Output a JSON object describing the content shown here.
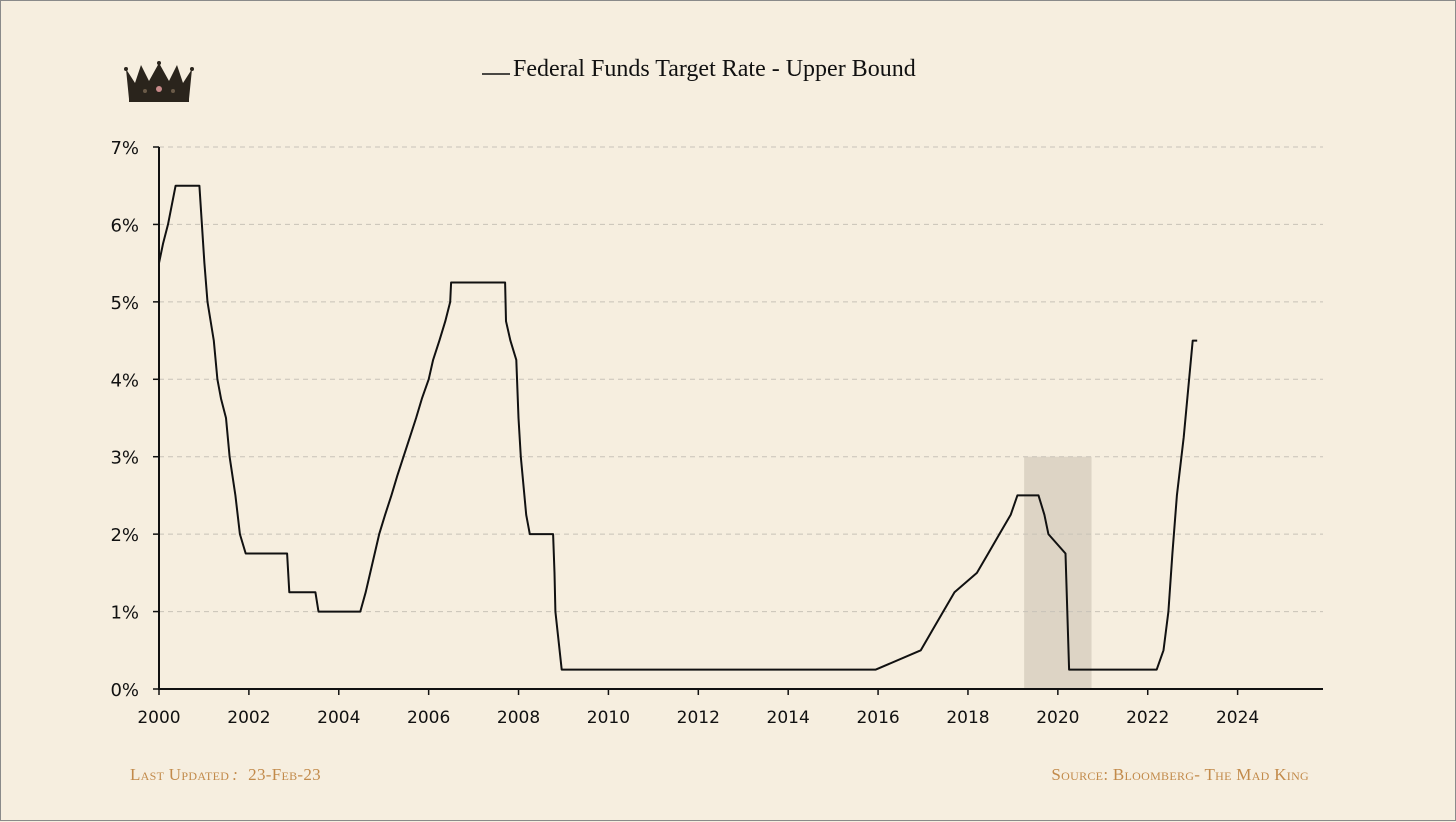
{
  "chart_data": {
    "type": "line",
    "title": "Federal Funds Target Rate - Upper Bound",
    "xlabel": "",
    "ylabel": "",
    "xlim": [
      2000,
      2025.9
    ],
    "ylim": [
      0,
      7
    ],
    "x_ticks": [
      2000,
      2002,
      2004,
      2006,
      2008,
      2010,
      2012,
      2014,
      2016,
      2018,
      2020,
      2022,
      2024
    ],
    "y_ticks": [
      0,
      1,
      2,
      3,
      4,
      5,
      6,
      7
    ],
    "y_tick_format": "percent",
    "grid": "horizontal-dashed",
    "legend": "top-center",
    "shaded_region": {
      "x": [
        2019.25,
        2020.75
      ],
      "y": [
        0,
        3
      ],
      "color": "#ddd4c5"
    },
    "series": [
      {
        "name": "Federal Funds Target Rate - Upper Bound",
        "color": "#111111",
        "points": [
          [
            2000.0,
            5.5
          ],
          [
            2000.09,
            5.75
          ],
          [
            2000.2,
            6.0
          ],
          [
            2000.37,
            6.5
          ],
          [
            2000.9,
            6.5
          ],
          [
            2001.01,
            5.5
          ],
          [
            2001.08,
            5.0
          ],
          [
            2001.22,
            4.5
          ],
          [
            2001.3,
            4.0
          ],
          [
            2001.38,
            3.75
          ],
          [
            2001.49,
            3.5
          ],
          [
            2001.57,
            3.0
          ],
          [
            2001.7,
            2.5
          ],
          [
            2001.8,
            2.0
          ],
          [
            2001.93,
            1.75
          ],
          [
            2002.85,
            1.75
          ],
          [
            2002.9,
            1.25
          ],
          [
            2003.48,
            1.25
          ],
          [
            2003.55,
            1.0
          ],
          [
            2004.48,
            1.0
          ],
          [
            2004.6,
            1.25
          ],
          [
            2004.7,
            1.5
          ],
          [
            2004.8,
            1.75
          ],
          [
            2004.9,
            2.0
          ],
          [
            2005.03,
            2.25
          ],
          [
            2005.17,
            2.5
          ],
          [
            2005.3,
            2.75
          ],
          [
            2005.44,
            3.0
          ],
          [
            2005.58,
            3.25
          ],
          [
            2005.72,
            3.5
          ],
          [
            2005.85,
            3.75
          ],
          [
            2006.0,
            4.0
          ],
          [
            2006.1,
            4.25
          ],
          [
            2006.24,
            4.5
          ],
          [
            2006.37,
            4.75
          ],
          [
            2006.48,
            5.0
          ],
          [
            2006.5,
            5.25
          ],
          [
            2007.7,
            5.25
          ],
          [
            2007.72,
            4.75
          ],
          [
            2007.82,
            4.5
          ],
          [
            2007.95,
            4.25
          ],
          [
            2008.0,
            3.5
          ],
          [
            2008.05,
            3.0
          ],
          [
            2008.17,
            2.25
          ],
          [
            2008.25,
            2.0
          ],
          [
            2008.77,
            2.0
          ],
          [
            2008.8,
            1.5
          ],
          [
            2008.82,
            1.0
          ],
          [
            2008.96,
            0.25
          ],
          [
            2015.95,
            0.25
          ],
          [
            2016.95,
            0.5
          ],
          [
            2017.2,
            0.75
          ],
          [
            2017.45,
            1.0
          ],
          [
            2017.7,
            1.25
          ],
          [
            2018.2,
            1.5
          ],
          [
            2018.45,
            1.75
          ],
          [
            2018.7,
            2.0
          ],
          [
            2018.95,
            2.25
          ],
          [
            2019.1,
            2.5
          ],
          [
            2019.57,
            2.5
          ],
          [
            2019.7,
            2.25
          ],
          [
            2019.79,
            2.0
          ],
          [
            2020.17,
            1.75
          ],
          [
            2020.25,
            0.25
          ],
          [
            2022.2,
            0.25
          ],
          [
            2022.35,
            0.5
          ],
          [
            2022.46,
            1.0
          ],
          [
            2022.55,
            1.75
          ],
          [
            2022.65,
            2.5
          ],
          [
            2022.8,
            3.25
          ],
          [
            2022.92,
            4.0
          ],
          [
            2023.0,
            4.5
          ],
          [
            2023.1,
            4.5
          ]
        ]
      }
    ]
  },
  "footer": {
    "last_updated_label": "Last Updated",
    "last_updated_sep": ":",
    "last_updated_value": "23-Feb-23",
    "source": "Source: Bloomberg- The Mad King"
  },
  "colors": {
    "background": "#f6eedf",
    "line": "#111111",
    "grid": "#c8c2b8",
    "shade": "#ddd4c5",
    "footer": "#c28a4a"
  },
  "icons": {
    "logo": "crown-icon"
  }
}
